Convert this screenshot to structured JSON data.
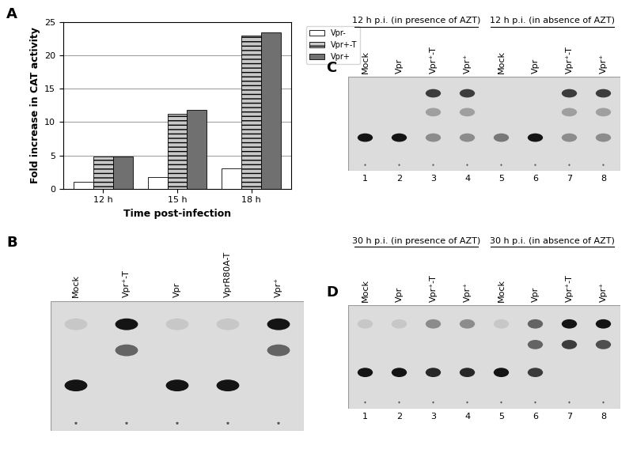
{
  "chart_data": {
    "type": "bar",
    "categories": [
      "12 h",
      "15 h",
      "18 h"
    ],
    "series": [
      {
        "name": "Vpr-",
        "color": "#ffffff",
        "values": [
          1,
          1.7,
          3
        ]
      },
      {
        "name": "Vpr+-T",
        "color": "#c8c8c8",
        "values": [
          4.8,
          11.3,
          23
        ]
      },
      {
        "name": "Vpr+",
        "color": "#707070",
        "values": [
          4.8,
          11.8,
          23.5
        ]
      }
    ],
    "xlabel": "Time post-infection",
    "ylabel": "Fold increase in CAT activity",
    "ylim": [
      0,
      25
    ],
    "yticks": [
      0,
      5,
      10,
      15,
      20,
      25
    ],
    "grid": true,
    "legend": "upper right"
  },
  "panel_labels": [
    "A",
    "B",
    "C",
    "D"
  ],
  "blots": [
    {
      "lanes": [
        "Mock",
        "Vpr⁺-T",
        "Vpr",
        "VprR80A-T",
        "Vpr⁺"
      ]
    },
    {
      "groups": [
        "12 h p.i. (in presence of AZT)",
        "12 h p.i. (in absence of AZT)"
      ],
      "lanes": [
        "Mock",
        "Vpr",
        "Vpr⁺-T",
        "Vpr⁺",
        "Mock",
        "Vpr",
        "Vpr⁺-T",
        "Vpr⁺"
      ],
      "lane_numbers": [
        1,
        2,
        3,
        4,
        5,
        6,
        7,
        8
      ]
    },
    {
      "groups": [
        "30 h p.i. (in presence of AZT)",
        "30 h p.i. (in absence of AZT)"
      ],
      "lanes": [
        "Mock",
        "Vpr",
        "Vpr⁺-T",
        "Vpr⁺",
        "Mock",
        "Vpr",
        "Vpr⁺-T",
        "Vpr⁺"
      ],
      "lane_numbers": [
        1,
        2,
        3,
        4,
        5,
        6,
        7,
        8
      ]
    }
  ]
}
